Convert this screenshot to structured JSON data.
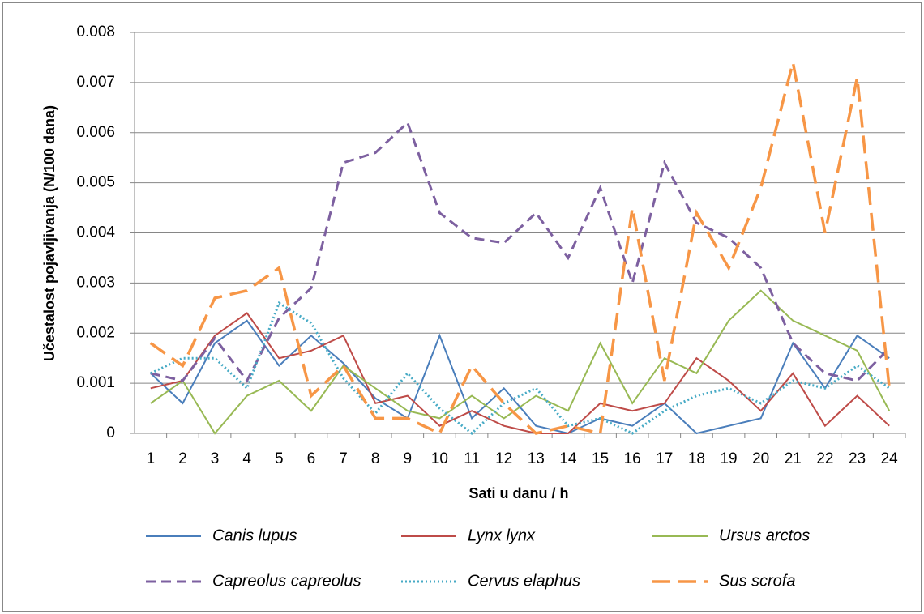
{
  "chart_data": {
    "type": "line",
    "x_label": "Sati u danu / h",
    "y_label": "Učestalost pojavljivanja  (N/100 dana)",
    "categories": [
      "1",
      "2",
      "3",
      "4",
      "5",
      "6",
      "7",
      "8",
      "9",
      "10",
      "11",
      "12",
      "13",
      "14",
      "15",
      "16",
      "17",
      "18",
      "19",
      "20",
      "21",
      "22",
      "23",
      "24"
    ],
    "ylim": [
      0,
      0.008
    ],
    "yticks": [
      0,
      0.001,
      0.002,
      0.003,
      0.004,
      0.005,
      0.006,
      0.007,
      0.008
    ],
    "grid": true,
    "legend": "bottom",
    "series": [
      {
        "name": "Canis lupus",
        "color": "#4a7ebb",
        "dash": "solid",
        "values": [
          0.0012,
          0.0006,
          0.0018,
          0.00225,
          0.00135,
          0.00195,
          0.0014,
          0.0007,
          0.0003,
          0.00195,
          0.0003,
          0.0009,
          0.00015,
          0,
          0.0003,
          0.00015,
          0.0006,
          0,
          0.00015,
          0.0003,
          0.0018,
          0.0009,
          0.00195,
          0.0015
        ]
      },
      {
        "name": "Lynx lynx",
        "color": "#be4b48",
        "dash": "solid",
        "values": [
          0.0009,
          0.00105,
          0.00195,
          0.0024,
          0.0015,
          0.00165,
          0.00195,
          0.0006,
          0.00075,
          0.00015,
          0.00045,
          0.00015,
          0,
          0,
          0.0006,
          0.00045,
          0.0006,
          0.0015,
          0.00105,
          0.00045,
          0.0012,
          0.00015,
          0.00075,
          0.00015
        ]
      },
      {
        "name": "Ursus arctos",
        "color": "#98b954",
        "dash": "solid",
        "values": [
          0.0006,
          0.00105,
          0,
          0.00075,
          0.00105,
          0.00045,
          0.00135,
          0.0009,
          0.00045,
          0.0003,
          0.00075,
          0.0003,
          0.00075,
          0.00045,
          0.0018,
          0.0006,
          0.0015,
          0.0012,
          0.00225,
          0.00285,
          0.00225,
          0.00195,
          0.00165,
          0.00045
        ]
      },
      {
        "name": "Capreolus capreolus",
        "color": "#7d60a0",
        "dash": "dashed",
        "values": [
          0.0012,
          0.00105,
          0.0019,
          0.00105,
          0.0023,
          0.0029,
          0.0054,
          0.0056,
          0.0062,
          0.0044,
          0.0039,
          0.0038,
          0.0044,
          0.0035,
          0.0049,
          0.003,
          0.0054,
          0.0042,
          0.0039,
          0.0033,
          0.0018,
          0.0012,
          0.00105,
          0.0017
        ]
      },
      {
        "name": "Cervus elaphus",
        "color": "#46aac5",
        "dash": "dotted",
        "values": [
          0.0012,
          0.0015,
          0.0015,
          0.0009,
          0.0026,
          0.0022,
          0.0011,
          0.0004,
          0.0012,
          0.0005,
          0,
          0.0006,
          0.0009,
          0.00015,
          0.0003,
          0,
          0.00045,
          0.00075,
          0.0009,
          0.0006,
          0.00105,
          0.0009,
          0.00135,
          0.0009
        ]
      },
      {
        "name": "Sus scrofa",
        "color": "#f79646",
        "dash": "long-dash",
        "values": [
          0.0018,
          0.00135,
          0.0027,
          0.00285,
          0.0033,
          0.00075,
          0.00135,
          0.0003,
          0.0003,
          0,
          0.00135,
          0.0006,
          0,
          0.00015,
          0,
          0.0045,
          0.00105,
          0.0044,
          0.0033,
          0.0049,
          0.0074,
          0.004,
          0.0071,
          0.0009
        ]
      }
    ]
  }
}
